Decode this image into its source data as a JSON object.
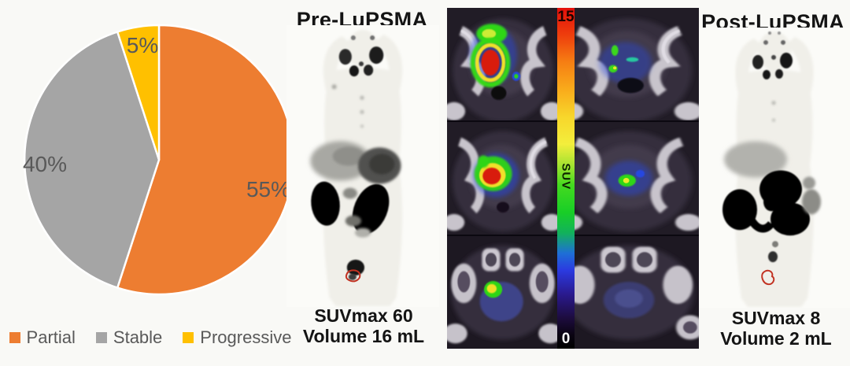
{
  "figure": {
    "pre_panel": {
      "title": "Pre-LuPSMA",
      "suvmax_label": "SUVmax 60",
      "volume_label": "Volume 16 mL"
    },
    "post_panel": {
      "title": "Post-LuPSMA",
      "suvmax_label": "SUVmax 8",
      "volume_label": "Volume 2 mL"
    },
    "suv_colorbar": {
      "max_label": "15",
      "axis_label": "SUV",
      "min_label": "0"
    }
  },
  "chart_data": {
    "type": "pie",
    "labels": [
      "Partial",
      "Stable",
      "Progressive"
    ],
    "values": [
      55,
      40,
      5
    ],
    "data_labels": [
      "55%",
      "40%",
      "5%"
    ],
    "colors": [
      "#ED7D31",
      "#A5A5A5",
      "#FFC000"
    ],
    "label_color": "#595959",
    "start_angle_deg": 0,
    "direction": "clockwise",
    "legend_position": "bottom"
  }
}
